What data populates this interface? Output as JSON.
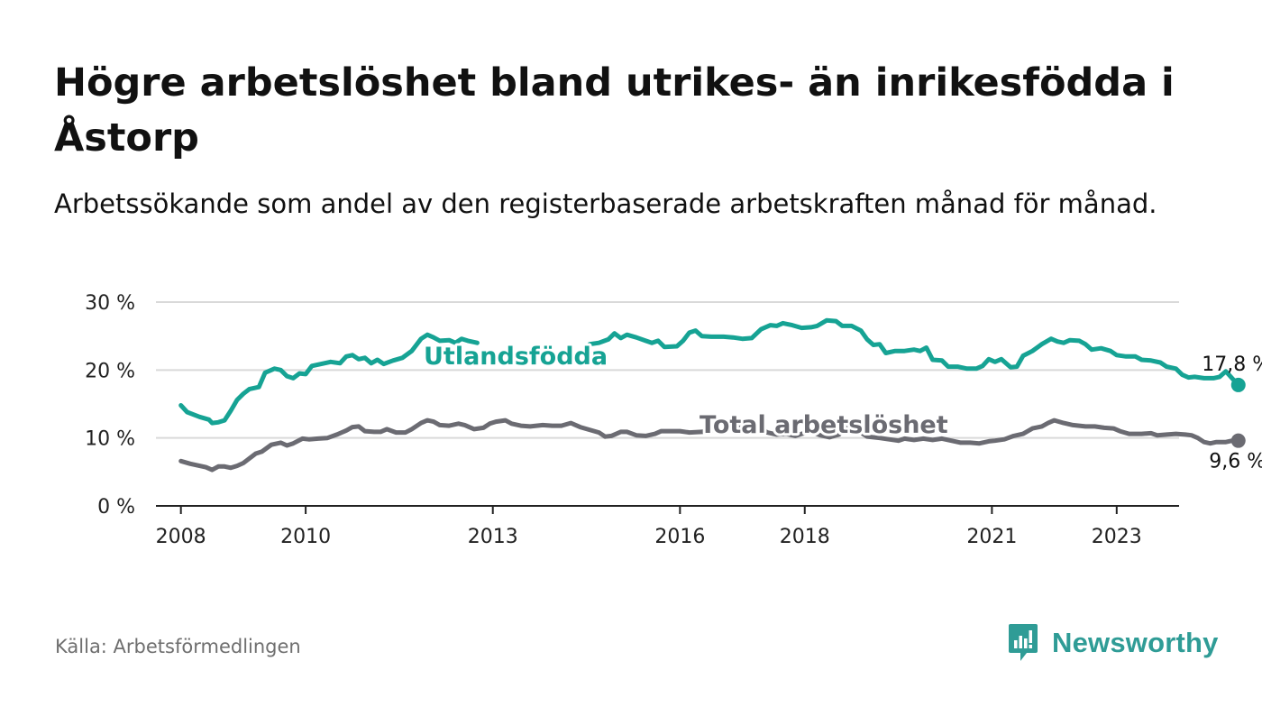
{
  "title": "Högre arbetslöshet bland utrikes- än inrikesfödda i Åstorp",
  "subtitle": "Arbetssökande som andel av den registerbaserade arbetskraften månad för månad.",
  "source": "Källa: Arbetsförmedlingen",
  "brand": "Newsworthy",
  "colors": {
    "foreign": "#16a394",
    "total": "#6b6b72",
    "grid": "#d9d9d9",
    "axis": "#222222",
    "brand": "#2f9c96"
  },
  "chart_data": {
    "type": "line",
    "title": "Högre arbetslöshet bland utrikes- än inrikesfödda i Åstorp",
    "xlabel": "",
    "ylabel": "",
    "xlim": [
      2007.6,
      2024.0
    ],
    "ylim": [
      0,
      30
    ],
    "y_ticks": [
      0,
      10,
      20,
      30
    ],
    "y_tick_labels": [
      "0 %",
      "10 %",
      "20 %",
      "30 %"
    ],
    "x_ticks": [
      2008,
      2010,
      2013,
      2016,
      2018,
      2021,
      2023
    ],
    "x_tick_labels": [
      "2008",
      "2010",
      "2013",
      "2016",
      "2018",
      "2021",
      "2023"
    ],
    "grid": true,
    "series": [
      {
        "name": "Utlandsfödda",
        "label": "Utlandsfödda",
        "end_label": "17,8 %",
        "points": [
          [
            2008.0,
            14.8
          ],
          [
            2008.1,
            13.8
          ],
          [
            2008.3,
            13.1
          ],
          [
            2008.45,
            12.7
          ],
          [
            2008.5,
            12.2
          ],
          [
            2008.6,
            12.3
          ],
          [
            2008.7,
            12.6
          ],
          [
            2008.8,
            14.0
          ],
          [
            2008.9,
            15.6
          ],
          [
            2009.0,
            16.5
          ],
          [
            2009.1,
            17.2
          ],
          [
            2009.25,
            17.5
          ],
          [
            2009.35,
            19.6
          ],
          [
            2009.5,
            20.2
          ],
          [
            2009.6,
            20.0
          ],
          [
            2009.7,
            19.1
          ],
          [
            2009.8,
            18.8
          ],
          [
            2009.9,
            19.5
          ],
          [
            2010.0,
            19.4
          ],
          [
            2010.1,
            20.6
          ],
          [
            2010.2,
            20.8
          ],
          [
            2010.3,
            21.0
          ],
          [
            2010.4,
            21.2
          ],
          [
            2010.55,
            21.0
          ],
          [
            2010.65,
            22.0
          ],
          [
            2010.75,
            22.2
          ],
          [
            2010.85,
            21.6
          ],
          [
            2010.95,
            21.8
          ],
          [
            2011.05,
            21.0
          ],
          [
            2011.15,
            21.5
          ],
          [
            2011.25,
            20.9
          ],
          [
            2011.4,
            21.4
          ],
          [
            2011.55,
            21.8
          ],
          [
            2011.7,
            22.8
          ],
          [
            2011.85,
            24.6
          ],
          [
            2011.95,
            25.2
          ],
          [
            2012.05,
            24.8
          ],
          [
            2012.15,
            24.3
          ],
          [
            2012.3,
            24.4
          ],
          [
            2012.4,
            24.0
          ],
          [
            2012.5,
            24.6
          ],
          [
            2012.6,
            24.3
          ],
          [
            2012.7,
            24.1
          ],
          [
            2012.75,
            24.0
          ],
          [
            2014.55,
            23.8
          ],
          [
            2014.7,
            24.0
          ],
          [
            2014.85,
            24.5
          ],
          [
            2014.95,
            25.4
          ],
          [
            2015.05,
            24.7
          ],
          [
            2015.15,
            25.2
          ],
          [
            2015.3,
            24.8
          ],
          [
            2015.45,
            24.3
          ],
          [
            2015.55,
            24.0
          ],
          [
            2015.65,
            24.3
          ],
          [
            2015.75,
            23.4
          ],
          [
            2015.95,
            23.5
          ],
          [
            2016.05,
            24.3
          ],
          [
            2016.15,
            25.5
          ],
          [
            2016.25,
            25.8
          ],
          [
            2016.35,
            25.0
          ],
          [
            2016.5,
            24.9
          ],
          [
            2016.7,
            24.9
          ],
          [
            2016.85,
            24.8
          ],
          [
            2017.0,
            24.6
          ],
          [
            2017.15,
            24.7
          ],
          [
            2017.3,
            26.0
          ],
          [
            2017.45,
            26.6
          ],
          [
            2017.55,
            26.5
          ],
          [
            2017.65,
            26.9
          ],
          [
            2017.8,
            26.6
          ],
          [
            2017.95,
            26.2
          ],
          [
            2018.1,
            26.3
          ],
          [
            2018.2,
            26.5
          ],
          [
            2018.35,
            27.3
          ],
          [
            2018.5,
            27.2
          ],
          [
            2018.6,
            26.5
          ],
          [
            2018.75,
            26.5
          ],
          [
            2018.9,
            25.8
          ],
          [
            2019.0,
            24.5
          ],
          [
            2019.1,
            23.7
          ],
          [
            2019.2,
            23.8
          ],
          [
            2019.3,
            22.5
          ],
          [
            2019.45,
            22.8
          ],
          [
            2019.6,
            22.8
          ],
          [
            2019.75,
            23.0
          ],
          [
            2019.85,
            22.8
          ],
          [
            2019.95,
            23.3
          ],
          [
            2020.05,
            21.5
          ],
          [
            2020.2,
            21.4
          ],
          [
            2020.3,
            20.5
          ],
          [
            2020.45,
            20.5
          ],
          [
            2020.6,
            20.2
          ],
          [
            2020.75,
            20.2
          ],
          [
            2020.85,
            20.6
          ],
          [
            2020.95,
            21.6
          ],
          [
            2021.05,
            21.2
          ],
          [
            2021.15,
            21.6
          ],
          [
            2021.3,
            20.4
          ],
          [
            2021.4,
            20.5
          ],
          [
            2021.5,
            22.1
          ],
          [
            2021.65,
            22.8
          ],
          [
            2021.8,
            23.8
          ],
          [
            2021.95,
            24.6
          ],
          [
            2022.05,
            24.2
          ],
          [
            2022.15,
            24.0
          ],
          [
            2022.25,
            24.4
          ],
          [
            2022.4,
            24.3
          ],
          [
            2022.5,
            23.8
          ],
          [
            2022.6,
            23.0
          ],
          [
            2022.75,
            23.2
          ],
          [
            2022.9,
            22.8
          ],
          [
            2023.0,
            22.2
          ],
          [
            2023.15,
            22.0
          ],
          [
            2023.3,
            22.0
          ],
          [
            2023.4,
            21.5
          ],
          [
            2023.55,
            21.4
          ],
          [
            2023.7,
            21.1
          ],
          [
            2023.8,
            20.5
          ],
          [
            2023.95,
            20.2
          ],
          [
            2024.05,
            19.3
          ],
          [
            2024.15,
            18.9
          ],
          [
            2024.25,
            19.0
          ],
          [
            2024.4,
            18.8
          ],
          [
            2024.55,
            18.8
          ],
          [
            2024.65,
            19.0
          ],
          [
            2024.75,
            19.8
          ],
          [
            2024.85,
            18.8
          ],
          [
            2024.95,
            17.8
          ]
        ]
      },
      {
        "name": "Total arbetslöshet",
        "label": "Total arbetslöshet",
        "end_label": "9,6 %",
        "points": [
          [
            2008.0,
            6.6
          ],
          [
            2008.15,
            6.2
          ],
          [
            2008.3,
            5.9
          ],
          [
            2008.4,
            5.7
          ],
          [
            2008.5,
            5.3
          ],
          [
            2008.6,
            5.8
          ],
          [
            2008.7,
            5.8
          ],
          [
            2008.8,
            5.6
          ],
          [
            2008.9,
            5.9
          ],
          [
            2009.0,
            6.3
          ],
          [
            2009.1,
            7.0
          ],
          [
            2009.2,
            7.7
          ],
          [
            2009.3,
            8.0
          ],
          [
            2009.45,
            9.0
          ],
          [
            2009.6,
            9.3
          ],
          [
            2009.7,
            8.9
          ],
          [
            2009.8,
            9.2
          ],
          [
            2009.95,
            9.9
          ],
          [
            2010.05,
            9.8
          ],
          [
            2010.2,
            9.9
          ],
          [
            2010.35,
            10.0
          ],
          [
            2010.5,
            10.5
          ],
          [
            2010.65,
            11.1
          ],
          [
            2010.75,
            11.6
          ],
          [
            2010.85,
            11.7
          ],
          [
            2010.95,
            11.0
          ],
          [
            2011.1,
            10.9
          ],
          [
            2011.2,
            10.9
          ],
          [
            2011.3,
            11.3
          ],
          [
            2011.45,
            10.8
          ],
          [
            2011.6,
            10.8
          ],
          [
            2011.7,
            11.3
          ],
          [
            2011.85,
            12.2
          ],
          [
            2011.95,
            12.6
          ],
          [
            2012.05,
            12.4
          ],
          [
            2012.15,
            11.9
          ],
          [
            2012.3,
            11.8
          ],
          [
            2012.45,
            12.1
          ],
          [
            2012.55,
            11.9
          ],
          [
            2012.7,
            11.3
          ],
          [
            2012.85,
            11.5
          ],
          [
            2012.95,
            12.1
          ],
          [
            2013.05,
            12.4
          ],
          [
            2013.2,
            12.6
          ],
          [
            2013.3,
            12.1
          ],
          [
            2013.45,
            11.8
          ],
          [
            2013.6,
            11.7
          ],
          [
            2013.8,
            11.9
          ],
          [
            2013.95,
            11.8
          ],
          [
            2014.1,
            11.8
          ],
          [
            2014.25,
            12.2
          ],
          [
            2014.4,
            11.6
          ],
          [
            2014.55,
            11.2
          ],
          [
            2014.7,
            10.8
          ],
          [
            2014.8,
            10.2
          ],
          [
            2014.9,
            10.3
          ],
          [
            2015.05,
            10.9
          ],
          [
            2015.15,
            10.9
          ],
          [
            2015.3,
            10.4
          ],
          [
            2015.45,
            10.3
          ],
          [
            2015.6,
            10.6
          ],
          [
            2015.7,
            11.0
          ],
          [
            2015.85,
            11.0
          ],
          [
            2016.0,
            11.0
          ],
          [
            2016.15,
            10.8
          ],
          [
            2016.35,
            10.9
          ],
          [
            2016.5,
            11.2
          ],
          [
            2016.65,
            11.1
          ],
          [
            2016.8,
            11.3
          ],
          [
            2017.0,
            11.9
          ],
          [
            2017.1,
            12.0
          ],
          [
            2017.2,
            11.8
          ],
          [
            2017.3,
            11.4
          ],
          [
            2017.4,
            10.8
          ],
          [
            2017.55,
            10.5
          ],
          [
            2017.7,
            10.6
          ],
          [
            2017.85,
            10.3
          ],
          [
            2017.95,
            10.6
          ],
          [
            2018.1,
            10.9
          ],
          [
            2018.25,
            10.4
          ],
          [
            2018.4,
            10.1
          ],
          [
            2018.55,
            10.5
          ],
          [
            2018.65,
            11.4
          ],
          [
            2018.75,
            11.5
          ],
          [
            2018.8,
            11.4
          ],
          [
            2019.0,
            10.2
          ],
          [
            2019.2,
            10.0
          ],
          [
            2019.35,
            9.8
          ],
          [
            2019.5,
            9.6
          ],
          [
            2019.6,
            9.9
          ],
          [
            2019.75,
            9.7
          ],
          [
            2019.9,
            9.9
          ],
          [
            2020.05,
            9.7
          ],
          [
            2020.2,
            9.9
          ],
          [
            2020.35,
            9.6
          ],
          [
            2020.5,
            9.3
          ],
          [
            2020.65,
            9.3
          ],
          [
            2020.8,
            9.2
          ],
          [
            2020.95,
            9.5
          ],
          [
            2021.05,
            9.6
          ],
          [
            2021.2,
            9.8
          ],
          [
            2021.35,
            10.3
          ],
          [
            2021.5,
            10.6
          ],
          [
            2021.65,
            11.4
          ],
          [
            2021.8,
            11.7
          ],
          [
            2021.9,
            12.2
          ],
          [
            2022.0,
            12.6
          ],
          [
            2022.15,
            12.2
          ],
          [
            2022.3,
            11.9
          ],
          [
            2022.5,
            11.7
          ],
          [
            2022.65,
            11.7
          ],
          [
            2022.8,
            11.5
          ],
          [
            2022.95,
            11.4
          ],
          [
            2023.05,
            11.0
          ],
          [
            2023.2,
            10.6
          ],
          [
            2023.4,
            10.6
          ],
          [
            2023.55,
            10.7
          ],
          [
            2023.65,
            10.4
          ],
          [
            2023.8,
            10.5
          ],
          [
            2023.95,
            10.6
          ],
          [
            2024.1,
            10.5
          ],
          [
            2024.2,
            10.4
          ],
          [
            2024.3,
            10.0
          ],
          [
            2024.4,
            9.4
          ],
          [
            2024.5,
            9.2
          ],
          [
            2024.6,
            9.4
          ],
          [
            2024.75,
            9.4
          ],
          [
            2024.9,
            9.7
          ],
          [
            2024.95,
            9.6
          ]
        ]
      }
    ]
  }
}
